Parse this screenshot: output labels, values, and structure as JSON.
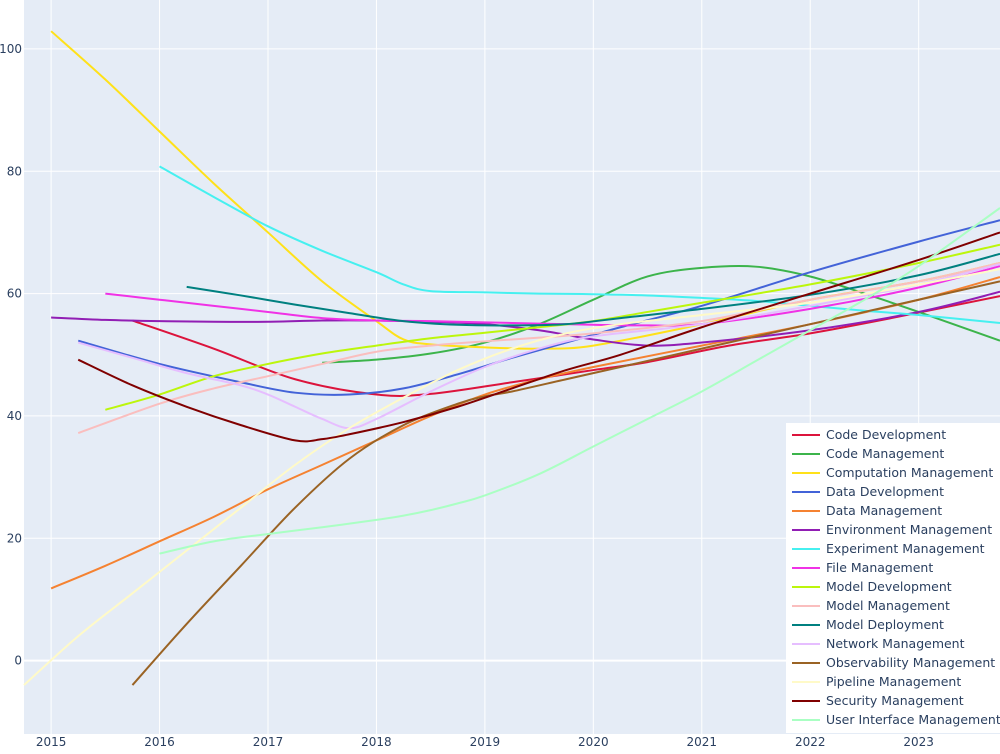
{
  "chart_data": {
    "type": "line",
    "title": "",
    "xlabel": "",
    "ylabel": "",
    "xlim": [
      2014.75,
      2023.75
    ],
    "ylim": [
      -12,
      108
    ],
    "x_ticks": [
      {
        "value": 2015,
        "label": "2015"
      },
      {
        "value": 2016,
        "label": "2016"
      },
      {
        "value": 2017,
        "label": "2017"
      },
      {
        "value": 2018,
        "label": "2018"
      },
      {
        "value": 2019,
        "label": "2019"
      },
      {
        "value": 2020,
        "label": "2020"
      },
      {
        "value": 2021,
        "label": "2021"
      },
      {
        "value": 2022,
        "label": "2022"
      },
      {
        "value": 2023,
        "label": "2023"
      }
    ],
    "y_ticks": [
      {
        "value": 0,
        "label": "0"
      },
      {
        "value": 20,
        "label": "20"
      },
      {
        "value": 40,
        "label": "40"
      },
      {
        "value": 60,
        "label": "60"
      },
      {
        "value": 80,
        "label": "80"
      },
      {
        "value": 100,
        "label": "100"
      }
    ],
    "grid": true,
    "legend_position": "bottom-right",
    "plot_background": "#E5ECF6",
    "series": [
      {
        "name": "Code Development",
        "color": "#DC143C",
        "x": [
          2015.75,
          2016.5,
          2017.25,
          2018.0,
          2018.5,
          2019.25,
          2020.0,
          2020.5,
          2021.25,
          2022.0,
          2022.75,
          2023.75
        ],
        "y": [
          55.6,
          51.0,
          46.0,
          43.5,
          43.6,
          45.5,
          47.5,
          48.8,
          51.5,
          53.5,
          56.0,
          59.6
        ]
      },
      {
        "name": "Code Management",
        "color": "#3CB44B",
        "x": [
          2017.5,
          2018.0,
          2018.5,
          2019.0,
          2019.5,
          2020.0,
          2020.5,
          2021.0,
          2021.5,
          2022.0,
          2022.5,
          2023.0,
          2023.75
        ],
        "y": [
          48.7,
          49.2,
          50.2,
          52.0,
          55.0,
          59.0,
          62.8,
          64.2,
          64.4,
          62.8,
          60.0,
          57.0,
          52.3
        ]
      },
      {
        "name": "Computation Management",
        "color": "#FFE119",
        "x": [
          2015.0,
          2015.5,
          2016.0,
          2016.5,
          2017.0,
          2017.5,
          2018.0,
          2018.25,
          2018.5,
          2019.0,
          2019.5,
          2020.0,
          2021.0,
          2022.0,
          2023.0,
          2023.75
        ],
        "y": [
          102.9,
          95.0,
          86.5,
          78.0,
          70.0,
          62.0,
          55.5,
          52.5,
          51.7,
          51.2,
          51.0,
          51.5,
          55.0,
          59.0,
          62.0,
          65.0
        ]
      },
      {
        "name": "Data Development",
        "color": "#4363D8",
        "x": [
          2015.25,
          2016.0,
          2016.75,
          2017.25,
          2017.75,
          2018.25,
          2018.75,
          2019.25,
          2019.75,
          2020.25,
          2021.0,
          2022.0,
          2023.0,
          2023.75
        ],
        "y": [
          52.3,
          48.5,
          45.5,
          43.8,
          43.5,
          44.5,
          46.8,
          49.5,
          52.0,
          54.5,
          58.0,
          63.5,
          68.5,
          72.0
        ]
      },
      {
        "name": "Data Management",
        "color": "#F58231",
        "x": [
          2015.0,
          2015.5,
          2016.0,
          2016.5,
          2017.0,
          2017.5,
          2018.0,
          2018.5,
          2019.0,
          2019.5,
          2020.0,
          2021.0,
          2022.0,
          2023.0,
          2023.75
        ],
        "y": [
          11.8,
          15.5,
          19.5,
          23.5,
          28.0,
          32.0,
          36.0,
          40.0,
          43.5,
          46.0,
          48.0,
          51.5,
          55.0,
          59.0,
          62.7
        ]
      },
      {
        "name": "Environment Management",
        "color": "#911EB4",
        "x": [
          2015.0,
          2015.5,
          2016.0,
          2016.5,
          2017.0,
          2017.5,
          2018.0,
          2018.5,
          2019.0,
          2019.5,
          2020.0,
          2020.5,
          2021.0,
          2022.0,
          2023.0,
          2023.75
        ],
        "y": [
          56.1,
          55.7,
          55.5,
          55.4,
          55.4,
          55.6,
          55.6,
          55.4,
          55.0,
          54.0,
          52.5,
          51.5,
          52.0,
          54.0,
          57.0,
          60.3
        ]
      },
      {
        "name": "Experiment Management",
        "color": "#46F0F0",
        "x": [
          2016.0,
          2016.5,
          2017.0,
          2017.5,
          2018.0,
          2018.25,
          2018.5,
          2019.0,
          2019.5,
          2020.0,
          2020.5,
          2021.0,
          2021.5,
          2022.0,
          2022.5,
          2023.0,
          2023.75
        ],
        "y": [
          80.8,
          75.8,
          71.0,
          67.0,
          63.5,
          61.5,
          60.4,
          60.2,
          60.0,
          59.9,
          59.7,
          59.3,
          58.8,
          58.0,
          57.2,
          56.5,
          55.2
        ]
      },
      {
        "name": "File Management",
        "color": "#F032E6",
        "x": [
          2015.5,
          2016.0,
          2016.5,
          2017.0,
          2017.5,
          2018.0,
          2018.5,
          2019.0,
          2019.5,
          2020.0,
          2020.5,
          2021.0,
          2022.0,
          2023.0,
          2023.75
        ],
        "y": [
          60.0,
          59.0,
          58.0,
          57.0,
          56.0,
          55.6,
          55.5,
          55.3,
          55.1,
          54.9,
          54.8,
          55.0,
          57.5,
          61.0,
          64.5
        ]
      },
      {
        "name": "Model Development",
        "color": "#BCF60C",
        "x": [
          2015.5,
          2016.0,
          2016.5,
          2017.0,
          2017.5,
          2018.0,
          2018.5,
          2019.0,
          2019.5,
          2020.0,
          2020.5,
          2021.0,
          2022.0,
          2023.0,
          2023.75
        ],
        "y": [
          41.0,
          43.5,
          46.5,
          48.5,
          50.2,
          51.5,
          52.7,
          53.6,
          54.5,
          55.5,
          57.0,
          58.5,
          61.5,
          65.0,
          68.0
        ]
      },
      {
        "name": "Model Management",
        "color": "#FABEBE",
        "x": [
          2015.25,
          2016.0,
          2016.5,
          2017.0,
          2017.5,
          2018.0,
          2018.5,
          2019.0,
          2019.5,
          2020.0,
          2021.0,
          2022.0,
          2023.0,
          2023.75
        ],
        "y": [
          37.2,
          42.0,
          44.5,
          46.5,
          48.5,
          50.5,
          51.5,
          52.2,
          52.8,
          53.5,
          55.5,
          59.0,
          62.0,
          65.0
        ]
      },
      {
        "name": "Model Deployment",
        "color": "#008080",
        "x": [
          2016.25,
          2016.75,
          2017.25,
          2017.75,
          2018.25,
          2018.75,
          2019.25,
          2019.75,
          2020.25,
          2021.0,
          2022.0,
          2023.0,
          2023.75
        ],
        "y": [
          61.1,
          59.7,
          58.2,
          56.8,
          55.5,
          54.9,
          54.8,
          55.0,
          56.0,
          57.5,
          59.8,
          63.0,
          66.5
        ]
      },
      {
        "name": "Network Management",
        "color": "#E6BEFF",
        "x": [
          2015.25,
          2015.75,
          2016.25,
          2016.75,
          2017.0,
          2017.25,
          2017.5,
          2017.75,
          2018.0,
          2018.5,
          2019.0,
          2019.5,
          2020.0,
          2021.0,
          2022.0,
          2023.0,
          2023.75
        ],
        "y": [
          52.0,
          49.5,
          47.0,
          45.0,
          43.5,
          41.5,
          39.5,
          38.0,
          39.5,
          44.0,
          48.0,
          51.0,
          53.0,
          55.0,
          58.0,
          61.5,
          64.8
        ]
      },
      {
        "name": "Observability Management",
        "color": "#9A6324",
        "x": [
          2015.75,
          2016.25,
          2016.75,
          2017.25,
          2017.75,
          2018.25,
          2018.75,
          2019.0,
          2019.25,
          2019.75,
          2020.25,
          2021.0,
          2022.0,
          2023.0,
          2023.75
        ],
        "y": [
          -4.0,
          6.0,
          15.5,
          25.0,
          33.0,
          38.5,
          42.0,
          43.2,
          44.0,
          46.0,
          48.0,
          51.0,
          55.0,
          59.0,
          62.0
        ]
      },
      {
        "name": "Pipeline Management",
        "color": "#FFFAC8",
        "x": [
          2014.75,
          2015.25,
          2015.75,
          2016.25,
          2016.75,
          2017.25,
          2017.75,
          2018.25,
          2018.75,
          2019.25,
          2019.75,
          2020.25,
          2021.0,
          2022.0,
          2023.0,
          2023.75
        ],
        "y": [
          -4.0,
          4.0,
          11.0,
          18.0,
          25.0,
          32.0,
          38.0,
          43.0,
          47.5,
          51.0,
          53.5,
          55.0,
          56.5,
          58.5,
          61.5,
          64.0
        ]
      },
      {
        "name": "Security Management",
        "color": "#800000",
        "x": [
          2015.25,
          2015.75,
          2016.25,
          2016.75,
          2017.25,
          2017.5,
          2017.75,
          2018.25,
          2018.75,
          2019.25,
          2019.75,
          2020.25,
          2021.0,
          2022.0,
          2023.0,
          2023.75
        ],
        "y": [
          49.2,
          45.0,
          41.5,
          38.5,
          36.0,
          36.2,
          37.0,
          39.0,
          41.5,
          44.5,
          47.5,
          50.0,
          54.5,
          60.0,
          65.5,
          70.0
        ]
      },
      {
        "name": "User Interface Management",
        "color": "#AAFFC3",
        "x": [
          2016.0,
          2016.5,
          2017.0,
          2017.5,
          2018.0,
          2018.25,
          2018.5,
          2018.75,
          2019.0,
          2019.5,
          2020.0,
          2020.5,
          2021.0,
          2021.5,
          2022.0,
          2022.5,
          2023.0,
          2023.75
        ],
        "y": [
          17.5,
          19.5,
          20.7,
          21.8,
          23.0,
          23.7,
          24.6,
          25.7,
          27.0,
          30.5,
          35.0,
          39.5,
          44.0,
          49.0,
          54.0,
          59.0,
          64.5,
          74.0
        ]
      }
    ]
  }
}
